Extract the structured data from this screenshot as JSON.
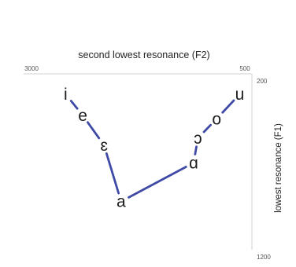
{
  "chart_data": {
    "type": "line",
    "xlabel": "second lowest resonance (F2)",
    "ylabel": "lowest resonance (F1)",
    "x_axis": {
      "reversed": true,
      "range": [
        3000,
        500
      ],
      "ticks": [
        {
          "value": 3000,
          "label": "3000"
        },
        {
          "value": 500,
          "label": "500"
        }
      ],
      "position": "top"
    },
    "y_axis": {
      "reversed": true,
      "range": [
        200,
        1200
      ],
      "ticks": [
        {
          "value": 200,
          "label": "200"
        },
        {
          "value": 1200,
          "label": "1200"
        }
      ],
      "position": "right"
    },
    "grid": false,
    "series": [
      {
        "points": [
          {
            "vowel": "i",
            "f2": 2600,
            "f1": 280
          },
          {
            "vowel": "e",
            "f2": 2400,
            "f1": 400
          },
          {
            "vowel": "ɛ",
            "f2": 2150,
            "f1": 570
          },
          {
            "vowel": "a",
            "f2": 1950,
            "f1": 890
          }
        ]
      },
      {
        "points": [
          {
            "vowel": "a",
            "f2": 1950,
            "f1": 890
          },
          {
            "vowel": "ɑ",
            "f2": 1100,
            "f1": 670
          },
          {
            "vowel": "ɔ",
            "f2": 1050,
            "f1": 530
          },
          {
            "vowel": "o",
            "f2": 830,
            "f1": 420
          },
          {
            "vowel": "u",
            "f2": 560,
            "f1": 280
          }
        ]
      }
    ],
    "line_color": "#3f4aa6"
  }
}
